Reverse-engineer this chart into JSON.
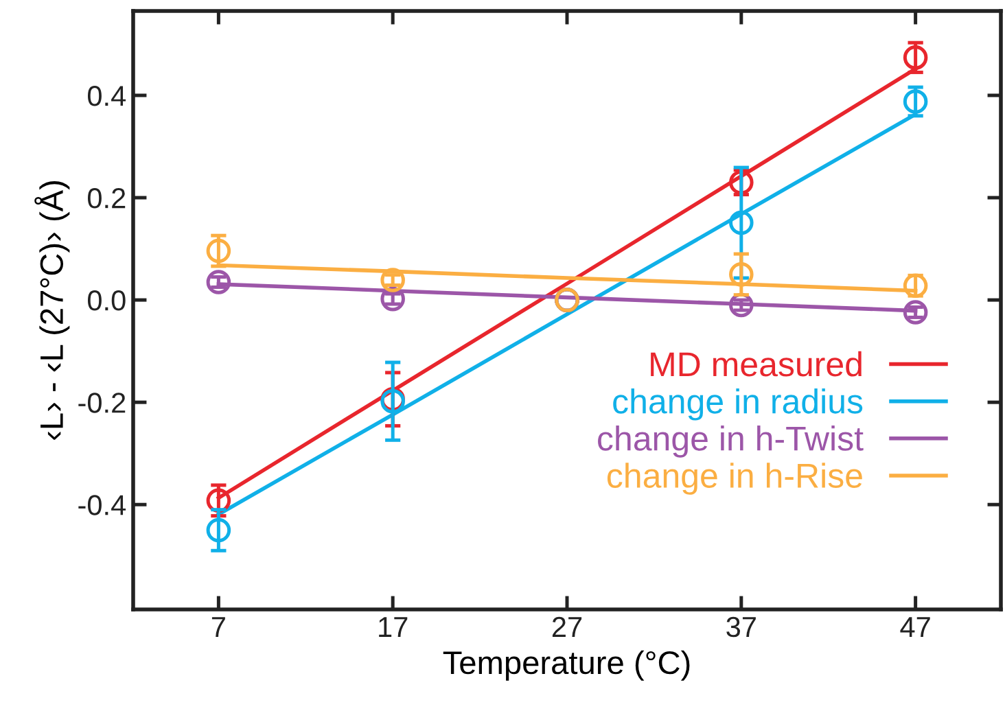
{
  "chart_data": {
    "type": "scatter",
    "xlabel": "Temperature (°C)",
    "ylabel": "‹L› - ‹L (27°C)› (Å)",
    "x": [
      7,
      17,
      27,
      37,
      47
    ],
    "xlim": [
      2.1,
      51.9
    ],
    "xticks": [
      7,
      17,
      27,
      37,
      47
    ],
    "ylim": [
      -0.605,
      0.565
    ],
    "yticks": [
      -0.4,
      -0.2,
      {
        "value": 0,
        "label": "0.0"
      },
      0.2,
      0.4
    ],
    "grid": false,
    "legend": "bottom right",
    "marker": "circle",
    "series": [
      {
        "color": "#e8262d",
        "values": [
          -0.392,
          -0.194,
          0.0,
          0.23,
          0.474
        ],
        "errors": [
          0.03,
          0.052,
          null,
          0.024,
          0.029
        ]
      },
      {
        "color": "#10b0e8",
        "values": [
          -0.45,
          -0.198,
          0.0,
          0.151,
          0.388
        ],
        "errors": [
          0.04,
          0.076,
          null,
          0.108,
          0.028
        ]
      },
      {
        "color": "#9c56a8",
        "values": [
          0.035,
          0.002,
          0.0,
          -0.01,
          -0.024
        ],
        "errors": [
          0.01,
          0.01,
          null,
          0.01,
          0.01
        ]
      },
      {
        "color": "#fbae42",
        "values": [
          0.096,
          0.039,
          0.0,
          0.05,
          0.028
        ],
        "errors": [
          0.03,
          0.01,
          null,
          0.04,
          0.02
        ]
      },
      {
        "type": "line",
        "name": "MD measured",
        "color": "#e8262d",
        "values": [
          -0.387,
          -0.177,
          0.032,
          0.242,
          0.452
        ],
        "marker": "none"
      },
      {
        "type": "line",
        "name": "change in radius",
        "color": "#10b0e8",
        "values": [
          -0.419,
          -0.224,
          -0.028,
          0.168,
          0.363
        ],
        "marker": "none"
      },
      {
        "type": "line",
        "name": "change in h-Twist",
        "color": "#9c56a8",
        "values": [
          0.031,
          0.018,
          0.005,
          -0.008,
          -0.021
        ],
        "marker": "none"
      },
      {
        "type": "line",
        "name": "change in h-Rise",
        "color": "#fbae42",
        "values": [
          0.068,
          0.056,
          0.043,
          0.031,
          0.018
        ],
        "marker": "none"
      }
    ]
  }
}
